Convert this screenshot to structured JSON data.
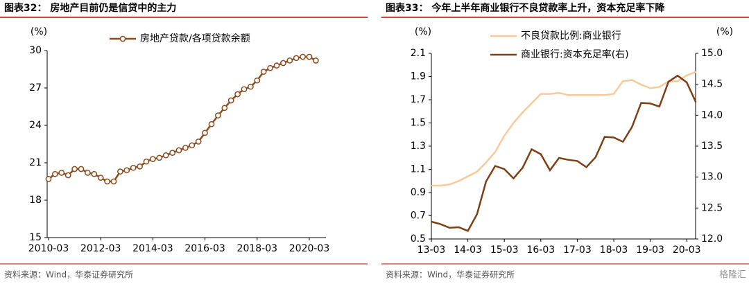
{
  "chart_data": [
    {
      "type": "line",
      "title": "图表32： 房地产目前仍是信贷中的主力",
      "ylabel": "(%)",
      "categories": [
        "2010-03",
        null,
        null,
        null,
        null,
        null,
        null,
        null,
        "2012-03",
        null,
        null,
        null,
        null,
        null,
        null,
        null,
        "2014-03",
        null,
        null,
        null,
        null,
        null,
        null,
        null,
        "2016-03",
        null,
        null,
        null,
        null,
        null,
        null,
        null,
        "2018-03",
        null,
        null,
        null,
        null,
        null,
        null,
        null,
        "2020-03",
        null
      ],
      "series": [
        {
          "name": "房地产贷款/各项贷款余额",
          "color": "#8b4a1c",
          "marker": "circle",
          "values": [
            19.7,
            20.1,
            20.2,
            20.0,
            20.5,
            20.5,
            20.2,
            20.1,
            19.8,
            19.5,
            19.5,
            20.3,
            20.4,
            20.6,
            20.7,
            21.1,
            21.3,
            21.4,
            21.6,
            21.8,
            22.0,
            22.2,
            22.4,
            22.7,
            23.4,
            24.1,
            24.8,
            25.4,
            26.0,
            26.5,
            26.9,
            27.1,
            27.6,
            28.3,
            28.6,
            28.8,
            29.0,
            29.2,
            29.4,
            29.5,
            29.5,
            29.2
          ]
        }
      ],
      "ylim": [
        15,
        30
      ],
      "yticks": [
        15,
        18,
        21,
        24,
        27,
        30
      ],
      "legend": "top",
      "source": "资料来源：Wind，华泰证券研究所"
    },
    {
      "type": "line",
      "title": "图表33： 今年上半年商业银行不良贷款率上升，资本充足率下降",
      "ylabel": "(%)",
      "y2label": "(%)",
      "categories": [
        "13-03",
        null,
        null,
        null,
        "14-03",
        null,
        null,
        null,
        "15-03",
        null,
        null,
        null,
        "16-03",
        null,
        null,
        null,
        "17-03",
        null,
        null,
        null,
        "18-03",
        null,
        null,
        null,
        "19-03",
        null,
        null,
        null,
        "20-03",
        null
      ],
      "series": [
        {
          "name": "不良贷款比例:商业银行",
          "color": "#f9c99c",
          "values": [
            0.96,
            0.96,
            0.97,
            1.0,
            1.04,
            1.08,
            1.16,
            1.25,
            1.39,
            1.5,
            1.59,
            1.67,
            1.75,
            1.75,
            1.76,
            1.74,
            1.74,
            1.74,
            1.74,
            1.74,
            1.75,
            1.86,
            1.87,
            1.83,
            1.8,
            1.81,
            1.86,
            1.86,
            1.91,
            1.94
          ]
        },
        {
          "name": "商业银行:资本充足率(右)",
          "color": "#7e3f14",
          "axis": "y2",
          "values": [
            12.28,
            12.24,
            12.18,
            12.19,
            12.13,
            12.4,
            12.93,
            13.18,
            13.13,
            12.98,
            13.15,
            13.45,
            13.37,
            13.11,
            13.31,
            13.28,
            13.26,
            13.16,
            13.32,
            13.65,
            13.64,
            13.57,
            13.81,
            14.2,
            14.19,
            14.14,
            14.54,
            14.64,
            14.53,
            14.21
          ]
        }
      ],
      "ylim": [
        0.5,
        2.1
      ],
      "yticks": [
        0.5,
        0.7,
        0.9,
        1.1,
        1.3,
        1.5,
        1.7,
        1.9,
        2.1
      ],
      "y2lim": [
        12,
        15
      ],
      "y2ticks": [
        {
          "value": 12,
          "label": "12.0"
        },
        12.5,
        {
          "value": 13,
          "label": "13.0"
        },
        13.5,
        {
          "value": 14,
          "label": "14.0"
        },
        14.5,
        {
          "value": 15,
          "label": "15.0"
        }
      ],
      "legend": "top-left",
      "source": "资料来源：Wind，华泰证券研究所"
    }
  ],
  "watermark": "格隆汇"
}
